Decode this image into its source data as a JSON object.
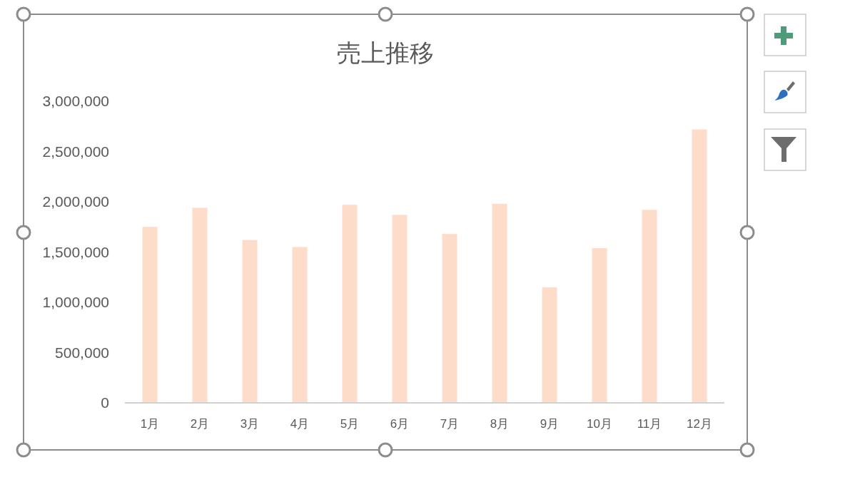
{
  "chart_data": {
    "type": "bar",
    "title": "売上推移",
    "categories": [
      "1月",
      "2月",
      "3月",
      "4月",
      "5月",
      "6月",
      "7月",
      "8月",
      "9月",
      "10月",
      "11月",
      "12月"
    ],
    "values": [
      1750000,
      1940000,
      1620000,
      1550000,
      1970000,
      1870000,
      1680000,
      1980000,
      1150000,
      1540000,
      1920000,
      2720000
    ],
    "color": "#fddcc9",
    "ylim": [
      0,
      3000000
    ],
    "yticks": [
      {
        "value": 0,
        "label": "0"
      },
      {
        "value": 500000,
        "label": "500,000"
      },
      {
        "value": 1000000,
        "label": "1,000,000"
      },
      {
        "value": 1500000,
        "label": "1,500,000"
      },
      {
        "value": 2000000,
        "label": "2,000,000"
      },
      {
        "value": 2500000,
        "label": "2,500,000"
      },
      {
        "value": 3000000,
        "label": "3,000,000"
      }
    ],
    "grid": false
  }
}
